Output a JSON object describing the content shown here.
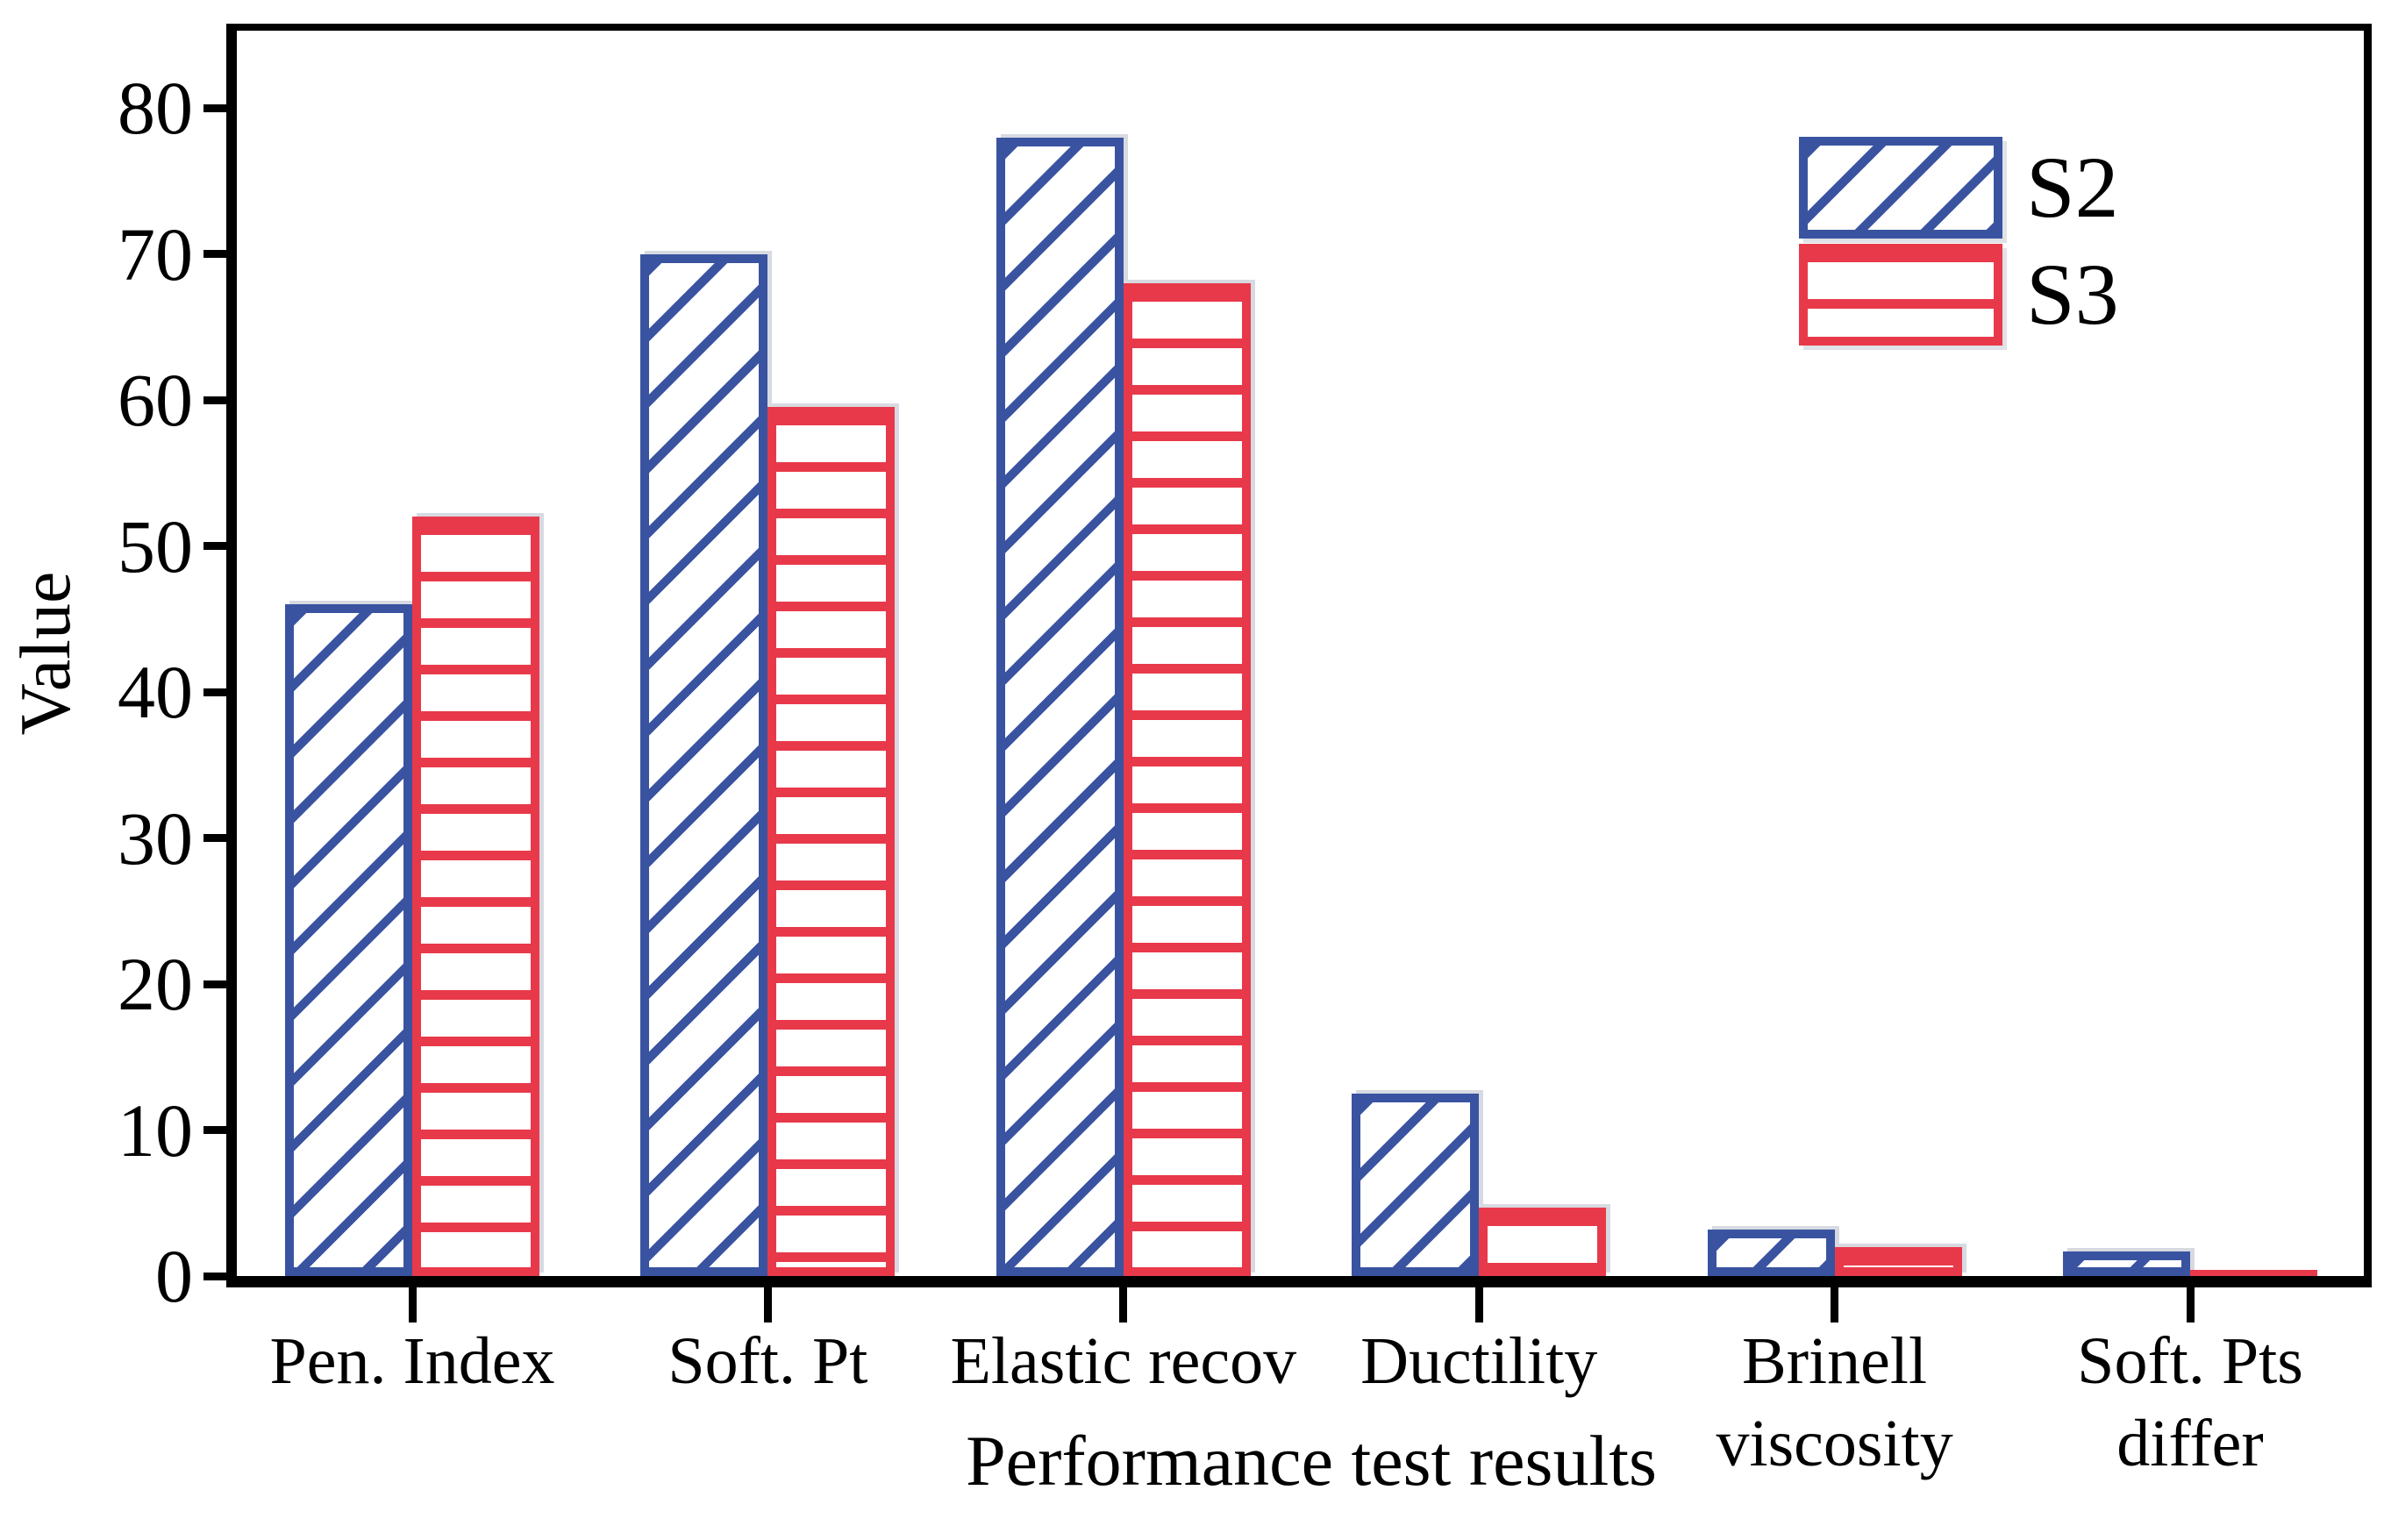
{
  "figure": {
    "background": "#ffffff",
    "frame_color": "#000000"
  },
  "chart_data": {
    "type": "bar",
    "title": "",
    "xlabel": "Performance test results",
    "ylabel": "Value",
    "categories": [
      "Pen. Index",
      "Soft. Pt",
      "Elastic recov",
      "Ductility",
      "Brinell viscosity",
      "Soft. Pts differ"
    ],
    "category_label_lines": [
      [
        "Pen. Index"
      ],
      [
        "Soft. Pt"
      ],
      [
        "Elastic recov"
      ],
      [
        "Ductility"
      ],
      [
        "Brinell",
        "viscosity"
      ],
      [
        "Soft. Pts",
        "differ"
      ]
    ],
    "series": [
      {
        "name": "S2",
        "color": "#3a53a1",
        "hatch": "diagonal",
        "values": [
          46,
          70,
          78,
          12.5,
          3.2,
          1.7
        ]
      },
      {
        "name": "S3",
        "color": "#e8394a",
        "hatch": "horizontal",
        "values": [
          52,
          59.5,
          68,
          4.7,
          2.0,
          0.25
        ]
      }
    ],
    "ylim": [
      0,
      85.3
    ],
    "yticks": [
      0,
      10,
      20,
      30,
      40,
      50,
      60,
      70,
      80
    ],
    "ytick_labels": [
      "0",
      "10",
      "20",
      "30",
      "40",
      "50",
      "60",
      "70",
      "80"
    ],
    "grid": false,
    "legend_position": "top-right-inside"
  }
}
